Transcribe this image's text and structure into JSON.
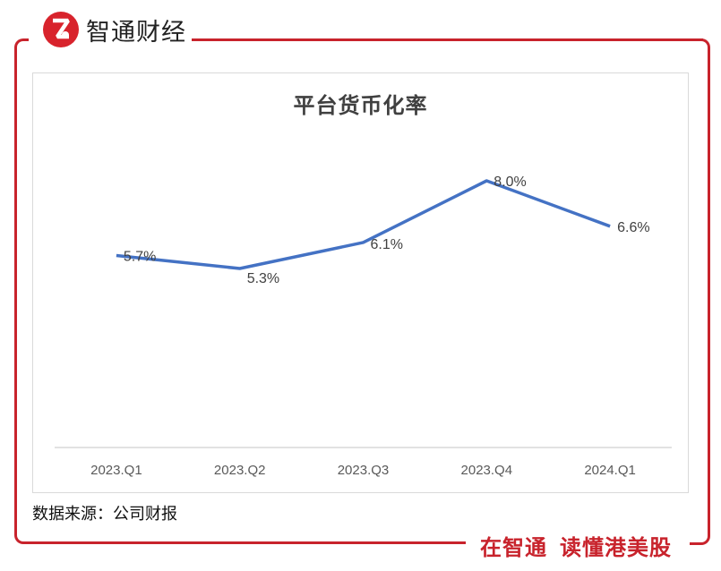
{
  "brand": {
    "name": "智通财经",
    "logo_glyph": "Z",
    "slogan_part1": "在智通",
    "slogan_part2": "读懂港美股",
    "accent_color": "#c8232c"
  },
  "chart": {
    "title": "平台货币化率",
    "source": "数据来源：公司财报",
    "line_color": "#4472c4"
  },
  "chart_data": {
    "type": "line",
    "title": "平台货币化率",
    "categories": [
      "2023.Q1",
      "2023.Q2",
      "2023.Q3",
      "2023.Q4",
      "2024.Q1"
    ],
    "series": [
      {
        "name": "平台货币化率",
        "values": [
          5.7,
          5.3,
          6.1,
          8.0,
          6.6
        ],
        "labels": [
          "5.7%",
          "5.3%",
          "6.1%",
          "8.0%",
          "6.6%"
        ]
      }
    ],
    "xlabel": "",
    "ylabel": "",
    "y_axis_visible": false,
    "grid": false,
    "legend": "none"
  }
}
